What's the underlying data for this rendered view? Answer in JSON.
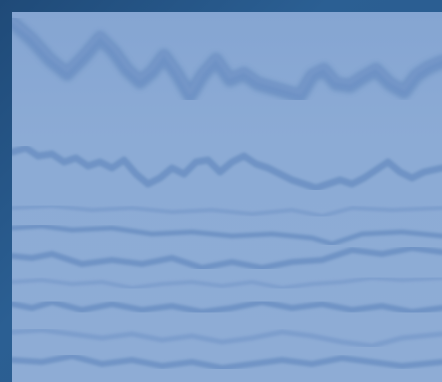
{
  "image": {
    "subject": "",
    "palette": {
      "frame": "#23507e",
      "panel": "#86a7d3",
      "line_dark": "#5f86bd",
      "line_mid": "#6f93c7"
    }
  }
}
